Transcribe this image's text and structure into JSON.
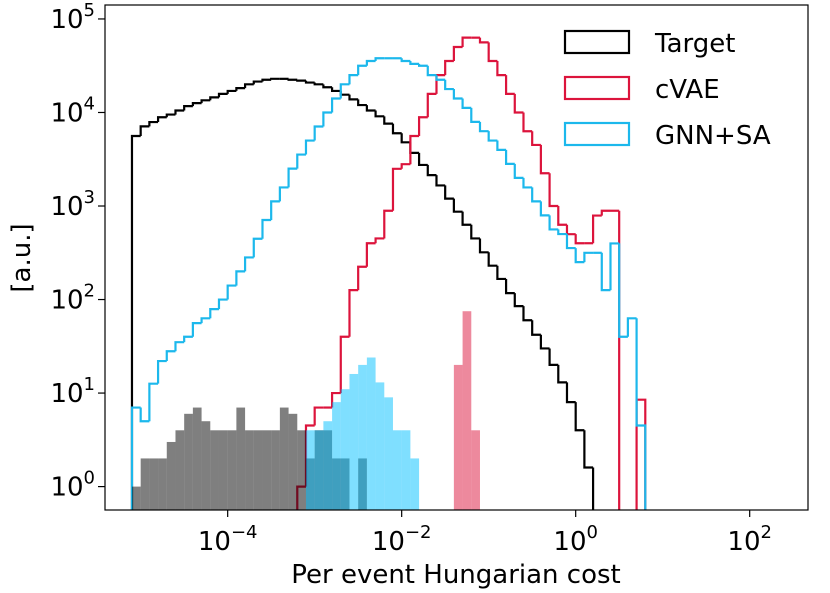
{
  "chart_data": {
    "type": "histogram",
    "x_label": "Per event Hungarian cost",
    "y_label": "[a.u.]",
    "xscale": "log",
    "yscale": "log",
    "xlim": [
      3.89e-06,
      468
    ],
    "ylim": [
      0.562,
      141000
    ],
    "xticks": [
      {
        "value": 0.0001,
        "label": "10",
        "exponent": "−4"
      },
      {
        "value": 0.01,
        "label": "10",
        "exponent": "−2"
      },
      {
        "value": 1,
        "label": "10",
        "exponent": "0"
      },
      {
        "value": 100,
        "label": "10",
        "exponent": "2"
      }
    ],
    "yticks": [
      {
        "value": 1,
        "label": "10",
        "exponent": "0"
      },
      {
        "value": 10,
        "label": "10",
        "exponent": "1"
      },
      {
        "value": 100,
        "label": "10",
        "exponent": "2"
      },
      {
        "value": 1000,
        "label": "10",
        "exponent": "3"
      },
      {
        "value": 10000,
        "label": "10",
        "exponent": "4"
      },
      {
        "value": 100000,
        "label": "10",
        "exponent": "5"
      }
    ],
    "legend_loc": "upper right",
    "bins": [
      7.943e-06,
      1e-05,
      1.259e-05,
      1.585e-05,
      1.995e-05,
      2.512e-05,
      3.162e-05,
      3.981e-05,
      5.012e-05,
      6.31e-05,
      7.943e-05,
      0.0001,
      0.0001259,
      0.0001585,
      0.0001995,
      0.0002512,
      0.0003162,
      0.0003981,
      0.0005012,
      0.000631,
      0.0007943,
      0.001,
      0.001259,
      0.001585,
      0.001995,
      0.002512,
      0.003162,
      0.003981,
      0.005012,
      0.00631,
      0.007943,
      0.01,
      0.01259,
      0.01585,
      0.01995,
      0.02512,
      0.03162,
      0.03981,
      0.05012,
      0.0631,
      0.07943,
      0.1,
      0.1259,
      0.1585,
      0.1995,
      0.2512,
      0.3162,
      0.3981,
      0.5012,
      0.631,
      0.7943,
      1,
      1.259,
      1.585,
      1.995,
      2.512,
      3.162,
      3.981,
      5.012,
      6.31
    ],
    "series": [
      {
        "name": "Target",
        "color": "#000000",
        "style": "step",
        "values": [
          5600,
          7100,
          7900,
          8900,
          9500,
          10500,
          11700,
          12600,
          13500,
          14500,
          15800,
          17000,
          18200,
          20000,
          21400,
          22400,
          22900,
          22900,
          22400,
          21900,
          20900,
          20000,
          18600,
          17000,
          15500,
          13800,
          12000,
          10500,
          9100,
          7600,
          6000,
          4800,
          3700,
          2750,
          2140,
          1660,
          1200,
          870,
          630,
          450,
          320,
          230,
          166,
          117,
          85,
          60,
          42,
          30,
          20,
          13,
          8,
          4,
          1.6,
          0,
          0,
          0,
          0,
          0,
          0
        ]
      },
      {
        "name": "cVAE",
        "color": "#dc143c",
        "style": "step",
        "values": [
          0,
          0,
          0,
          0,
          0,
          0,
          0,
          0,
          0,
          0,
          0,
          0,
          0,
          0,
          0,
          0,
          0,
          0,
          0,
          1,
          4.5,
          7,
          7,
          10,
          40,
          126,
          224,
          400,
          450,
          890,
          2500,
          2800,
          5600,
          8900,
          15800,
          25100,
          35500,
          50100,
          63100,
          63100,
          56200,
          35500,
          25100,
          15800,
          10000,
          6300,
          4500,
          2240,
          1000,
          630,
          500,
          400,
          400,
          790,
          890,
          890,
          0,
          0,
          8.5
        ]
      },
      {
        "name": "GNN+SA",
        "color": "#1cb8ec",
        "style": "step",
        "values": [
          7,
          5,
          12.6,
          22,
          28,
          35,
          40,
          56,
          63,
          79,
          100,
          141,
          200,
          282,
          447,
          708,
          1120,
          1580,
          2510,
          3550,
          5010,
          7080,
          10000,
          14100,
          20000,
          25100,
          31600,
          35500,
          38000,
          38000,
          38000,
          35500,
          33100,
          31600,
          25100,
          22400,
          17800,
          14100,
          11200,
          7940,
          6310,
          5010,
          3980,
          2820,
          2000,
          1580,
          1120,
          794,
          562,
          501,
          355,
          251,
          316,
          316,
          126,
          398,
          40,
          63,
          4.5
        ]
      },
      {
        "color": "#000000",
        "alpha": 0.5,
        "style": "filled",
        "values": [
          1,
          2,
          2,
          2,
          3,
          4,
          6,
          7,
          5,
          4,
          4,
          4,
          7,
          4,
          4,
          4,
          4,
          7,
          6,
          4,
          2,
          4,
          4,
          2,
          2,
          0,
          2,
          0,
          0,
          0,
          0,
          0,
          0,
          0,
          0,
          0,
          0,
          0,
          0,
          0,
          0,
          0,
          0,
          0,
          0,
          0,
          0,
          0,
          0,
          0,
          0,
          0,
          0,
          0,
          0,
          0,
          0,
          0,
          0
        ]
      },
      {
        "color": "#00bfff",
        "alpha": 0.5,
        "style": "filled",
        "values": [
          0,
          0,
          0,
          0,
          0,
          0,
          0,
          0,
          0,
          0,
          0,
          0,
          0,
          0,
          0,
          0,
          0,
          0,
          0,
          0,
          4,
          4,
          5,
          8,
          11,
          16,
          20,
          24,
          13,
          9,
          4,
          4,
          2,
          0,
          0,
          0,
          0,
          0,
          0,
          0,
          0,
          0,
          0,
          0,
          0,
          0,
          0,
          0,
          0,
          0,
          0,
          0,
          0,
          0,
          0,
          0,
          0,
          0,
          0
        ]
      },
      {
        "color": "#dc143c",
        "alpha": 0.5,
        "style": "filled",
        "values": [
          0,
          0,
          0,
          0,
          0,
          0,
          0,
          0,
          0,
          0,
          0,
          0,
          0,
          0,
          0,
          0,
          0,
          0,
          0,
          0,
          0,
          0,
          0,
          0,
          0,
          0,
          0,
          0,
          0,
          0,
          0,
          0,
          0,
          0,
          0,
          0,
          0,
          20,
          75,
          4,
          0,
          0,
          0,
          0,
          0,
          0,
          0,
          0,
          0,
          0,
          0,
          0,
          0,
          0,
          0,
          0,
          0,
          0,
          0
        ]
      }
    ]
  }
}
